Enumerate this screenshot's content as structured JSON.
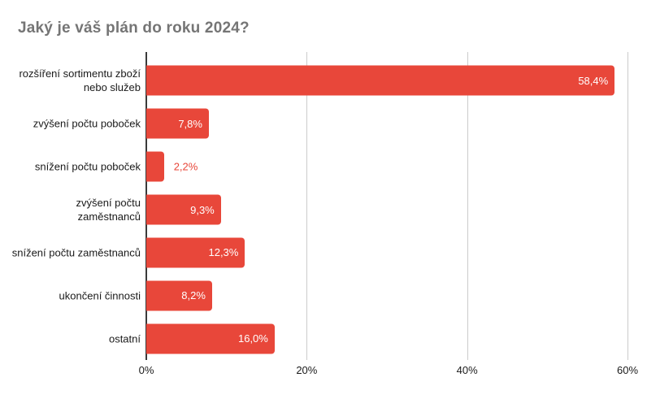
{
  "chart_data": {
    "type": "bar",
    "orientation": "horizontal",
    "title": "Jaký je váš plán do roku 2024?",
    "categories": [
      "rozšíření sortimentu zboží\nnebo služeb",
      "zvýšení počtu poboček",
      "snížení počtu poboček",
      "zvýšení počtu\nzaměstnanců",
      "snížení počtu zaměstnanců",
      "ukončení činnosti",
      "ostatní"
    ],
    "values": [
      58.4,
      7.8,
      2.2,
      9.3,
      12.3,
      8.2,
      16.0
    ],
    "value_labels": [
      "58,4%",
      "7,8%",
      "2,2%",
      "9,3%",
      "12,3%",
      "8,2%",
      "16,0%"
    ],
    "xlabel": "",
    "ylabel": "",
    "xlim": [
      0,
      60
    ],
    "x_ticks": [
      {
        "value": 0,
        "label": "0%"
      },
      {
        "value": 20,
        "label": "20%"
      },
      {
        "value": 40,
        "label": "40%"
      },
      {
        "value": 60,
        "label": "60%"
      }
    ],
    "grid": true,
    "legend": "none",
    "colors": {
      "bar": "#e8473a",
      "title": "#757575",
      "axis_line": "#3a3a3a",
      "gridline": "#cccccc",
      "tick_label": "#1a1a1a",
      "category_label": "#1a1a1a",
      "value_label_inside": "#ffffff",
      "value_label_outside": "#e8473a"
    }
  }
}
